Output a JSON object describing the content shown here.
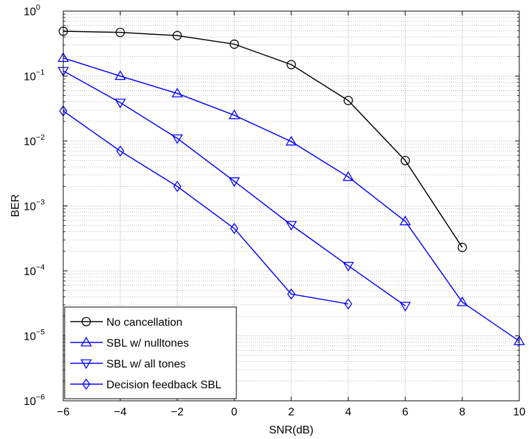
{
  "chart_data": {
    "type": "line",
    "title": "",
    "xlabel": "SNR(dB)",
    "ylabel": "BER",
    "xlim": [
      -6,
      10
    ],
    "ylim_exponent": [
      -6,
      0
    ],
    "yscale": "log",
    "grid": true,
    "legend_position": "bottom-left",
    "x_ticks": [
      "−6",
      "−4",
      "−2",
      "0",
      "2",
      "4",
      "6",
      "8",
      "10"
    ],
    "y_tick_base": "10",
    "y_tick_exponents": [
      "−6",
      "−5",
      "−4",
      "−3",
      "−2",
      "−1",
      "0"
    ],
    "series": [
      {
        "name": "No cancellation",
        "color": "#000000",
        "marker": "circle",
        "x": [
          -6,
          -4,
          -2,
          0,
          2,
          4,
          6,
          8
        ],
        "y": [
          0.49,
          0.47,
          0.42,
          0.31,
          0.15,
          0.042,
          0.005,
          0.00023
        ]
      },
      {
        "name": "SBL w/ nulltones",
        "color": "#0000ff",
        "marker": "triangle-up",
        "x": [
          -6,
          -4,
          -2,
          0,
          2,
          4,
          6,
          8,
          10
        ],
        "y": [
          0.19,
          0.1,
          0.054,
          0.025,
          0.0098,
          0.0028,
          0.00058,
          3.3e-05,
          8.3e-06
        ]
      },
      {
        "name": "SBL w/ all tones",
        "color": "#0000ff",
        "marker": "triangle-down",
        "x": [
          -6,
          -4,
          -2,
          0,
          2,
          4,
          6
        ],
        "y": [
          0.12,
          0.039,
          0.011,
          0.0024,
          0.00051,
          0.00012,
          2.9e-05
        ]
      },
      {
        "name": "Decision feedback SBL",
        "color": "#0000ff",
        "marker": "diamond",
        "x": [
          -6,
          -4,
          -2,
          0,
          2,
          4
        ],
        "y": [
          0.029,
          0.007,
          0.002,
          0.00045,
          4.4e-05,
          3.1e-05
        ]
      }
    ]
  }
}
